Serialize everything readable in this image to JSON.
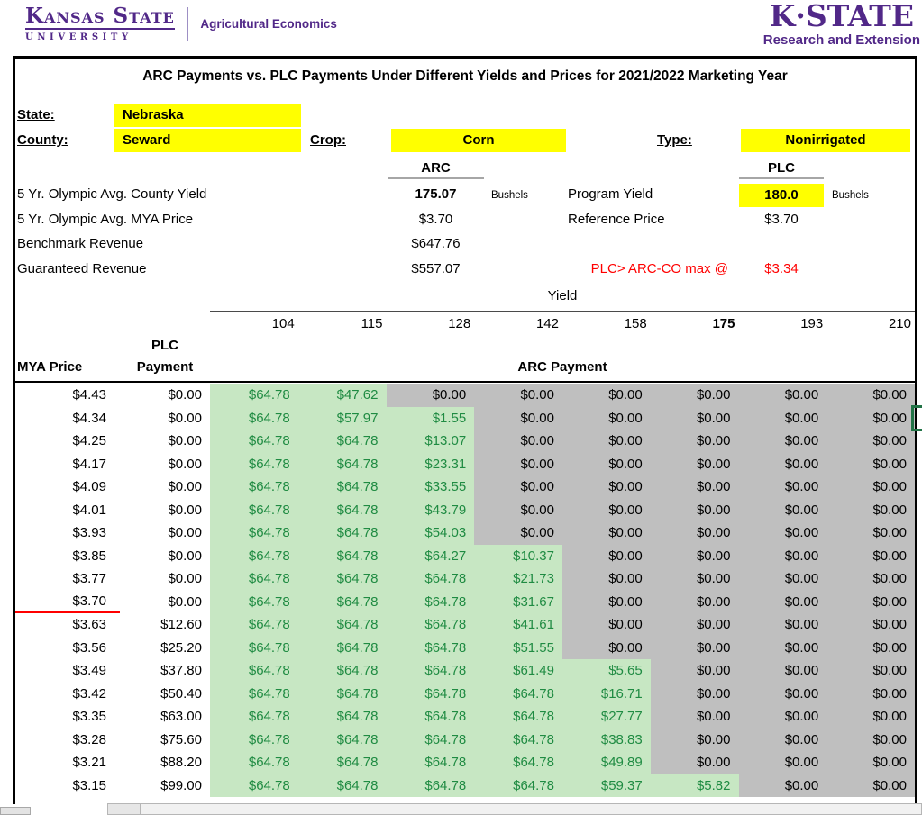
{
  "colors": {
    "purple": "#512888",
    "highlight_yellow": "#ffff00",
    "green_fill": "#c7e7c3",
    "green_text": "#1f8b42",
    "gray_fill": "#bfbfbf",
    "alert_red": "#ff0000"
  },
  "header": {
    "ksu_logo": {
      "line1": "Kansas State",
      "line2": "UNIVERSITY",
      "dept": "Agricultural Economics"
    },
    "kstate_logo": {
      "line1": "K·STATE",
      "line2": "Research and Extension"
    }
  },
  "sheet": {
    "title": "ARC Payments vs. PLC Payments Under Different Yields and Prices for 2021/2022 Marketing Year",
    "fields": {
      "state_label": "State:",
      "state": "Nebraska",
      "county_label": "County:",
      "county": "Seward",
      "crop_label": "Crop:",
      "crop": "Corn",
      "type_label": "Type:",
      "type": "Nonirrigated"
    },
    "arc": {
      "header": "ARC",
      "rows": [
        {
          "label": "5 Yr. Olympic Avg. County Yield",
          "value": "175.07",
          "unit": "Bushels"
        },
        {
          "label": "5 Yr. Olympic Avg. MYA Price",
          "value": "$3.70"
        },
        {
          "label": "Benchmark Revenue",
          "value": "$647.76"
        },
        {
          "label": "Guaranteed Revenue",
          "value": "$557.07"
        }
      ]
    },
    "plc": {
      "header": "PLC",
      "program_yield_label": "Program Yield",
      "program_yield": "180.0",
      "program_yield_unit": "Bushels",
      "reference_price_label": "Reference Price",
      "reference_price": "$3.70",
      "note_label": "PLC> ARC-CO max @",
      "note_value": "$3.34"
    },
    "matrix": {
      "yield_axis_label": "Yield",
      "yields": [
        "104",
        "115",
        "128",
        "142",
        "158",
        "175",
        "193",
        "210"
      ],
      "bold_yield_index": 5,
      "mya_header": "MYA Price",
      "plc_header_line1": "PLC",
      "plc_header_line2": "Payment",
      "arc_header": "ARC Payment",
      "rows": [
        {
          "price": "$4.43",
          "plc": "$0.00",
          "arc": [
            "$64.78",
            "$47.62",
            "$0.00",
            "$0.00",
            "$0.00",
            "$0.00",
            "$0.00",
            "$0.00"
          ],
          "green": 2
        },
        {
          "price": "$4.34",
          "plc": "$0.00",
          "arc": [
            "$64.78",
            "$57.97",
            "$1.55",
            "$0.00",
            "$0.00",
            "$0.00",
            "$0.00",
            "$0.00"
          ],
          "green": 3
        },
        {
          "price": "$4.25",
          "plc": "$0.00",
          "arc": [
            "$64.78",
            "$64.78",
            "$13.07",
            "$0.00",
            "$0.00",
            "$0.00",
            "$0.00",
            "$0.00"
          ],
          "green": 3
        },
        {
          "price": "$4.17",
          "plc": "$0.00",
          "arc": [
            "$64.78",
            "$64.78",
            "$23.31",
            "$0.00",
            "$0.00",
            "$0.00",
            "$0.00",
            "$0.00"
          ],
          "green": 3
        },
        {
          "price": "$4.09",
          "plc": "$0.00",
          "arc": [
            "$64.78",
            "$64.78",
            "$33.55",
            "$0.00",
            "$0.00",
            "$0.00",
            "$0.00",
            "$0.00"
          ],
          "green": 3
        },
        {
          "price": "$4.01",
          "plc": "$0.00",
          "arc": [
            "$64.78",
            "$64.78",
            "$43.79",
            "$0.00",
            "$0.00",
            "$0.00",
            "$0.00",
            "$0.00"
          ],
          "green": 3
        },
        {
          "price": "$3.93",
          "plc": "$0.00",
          "arc": [
            "$64.78",
            "$64.78",
            "$54.03",
            "$0.00",
            "$0.00",
            "$0.00",
            "$0.00",
            "$0.00"
          ],
          "green": 3
        },
        {
          "price": "$3.85",
          "plc": "$0.00",
          "arc": [
            "$64.78",
            "$64.78",
            "$64.27",
            "$10.37",
            "$0.00",
            "$0.00",
            "$0.00",
            "$0.00"
          ],
          "green": 4
        },
        {
          "price": "$3.77",
          "plc": "$0.00",
          "arc": [
            "$64.78",
            "$64.78",
            "$64.78",
            "$21.73",
            "$0.00",
            "$0.00",
            "$0.00",
            "$0.00"
          ],
          "green": 4
        },
        {
          "price": "$3.70",
          "plc": "$0.00",
          "arc": [
            "$64.78",
            "$64.78",
            "$64.78",
            "$31.67",
            "$0.00",
            "$0.00",
            "$0.00",
            "$0.00"
          ],
          "green": 4,
          "ref_line": true
        },
        {
          "price": "$3.63",
          "plc": "$12.60",
          "arc": [
            "$64.78",
            "$64.78",
            "$64.78",
            "$41.61",
            "$0.00",
            "$0.00",
            "$0.00",
            "$0.00"
          ],
          "green": 4
        },
        {
          "price": "$3.56",
          "plc": "$25.20",
          "arc": [
            "$64.78",
            "$64.78",
            "$64.78",
            "$51.55",
            "$0.00",
            "$0.00",
            "$0.00",
            "$0.00"
          ],
          "green": 4
        },
        {
          "price": "$3.49",
          "plc": "$37.80",
          "arc": [
            "$64.78",
            "$64.78",
            "$64.78",
            "$61.49",
            "$5.65",
            "$0.00",
            "$0.00",
            "$0.00"
          ],
          "green": 5
        },
        {
          "price": "$3.42",
          "plc": "$50.40",
          "arc": [
            "$64.78",
            "$64.78",
            "$64.78",
            "$64.78",
            "$16.71",
            "$0.00",
            "$0.00",
            "$0.00"
          ],
          "green": 5
        },
        {
          "price": "$3.35",
          "plc": "$63.00",
          "arc": [
            "$64.78",
            "$64.78",
            "$64.78",
            "$64.78",
            "$27.77",
            "$0.00",
            "$0.00",
            "$0.00"
          ],
          "green": 5
        },
        {
          "price": "$3.28",
          "plc": "$75.60",
          "arc": [
            "$64.78",
            "$64.78",
            "$64.78",
            "$64.78",
            "$38.83",
            "$0.00",
            "$0.00",
            "$0.00"
          ],
          "green": 5
        },
        {
          "price": "$3.21",
          "plc": "$88.20",
          "arc": [
            "$64.78",
            "$64.78",
            "$64.78",
            "$64.78",
            "$49.89",
            "$0.00",
            "$0.00",
            "$0.00"
          ],
          "green": 5
        },
        {
          "price": "$3.15",
          "plc": "$99.00",
          "arc": [
            "$64.78",
            "$64.78",
            "$64.78",
            "$64.78",
            "$59.37",
            "$5.82",
            "$0.00",
            "$0.00"
          ],
          "green": 6
        }
      ]
    }
  }
}
